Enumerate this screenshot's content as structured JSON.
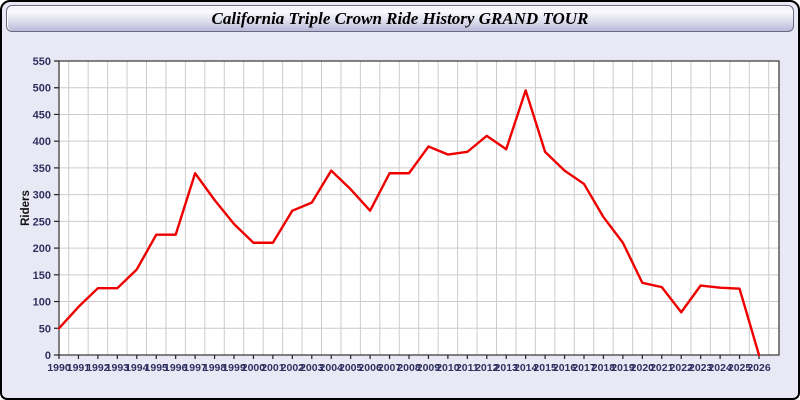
{
  "window": {
    "title": "California Triple Crown Ride History GRAND TOUR"
  },
  "chart_data": {
    "type": "line",
    "title": "California Triple Crown Ride History GRAND TOUR",
    "xlabel": "",
    "ylabel": "Riders",
    "x": [
      1990,
      1991,
      1992,
      1993,
      1994,
      1995,
      1996,
      1997,
      1998,
      1999,
      2000,
      2001,
      2002,
      2003,
      2004,
      2005,
      2006,
      2007,
      2008,
      2009,
      2010,
      2011,
      2012,
      2013,
      2014,
      2015,
      2016,
      2017,
      2018,
      2019,
      2020,
      2021,
      2022,
      2023,
      2024,
      2025,
      2026
    ],
    "series": [
      {
        "name": "Riders",
        "values": [
          50,
          90,
          125,
          125,
          160,
          225,
          225,
          340,
          290,
          245,
          210,
          210,
          270,
          285,
          345,
          310,
          270,
          340,
          340,
          390,
          375,
          380,
          410,
          385,
          495,
          380,
          345,
          320,
          258,
          210,
          135,
          127,
          80,
          130,
          126,
          124,
          0
        ]
      }
    ],
    "ylim": [
      0,
      550
    ],
    "y_tick_step": 50,
    "grid": true,
    "legend_position": "none",
    "colors": {
      "line": "#ee0000",
      "grid": "#cccccc",
      "plot_border": "#333333",
      "tick": "#222222",
      "axis_text": "#303060",
      "ylabel_text": "#111111",
      "background": "#e9e9f6",
      "plot_background": "#ffffff"
    }
  }
}
